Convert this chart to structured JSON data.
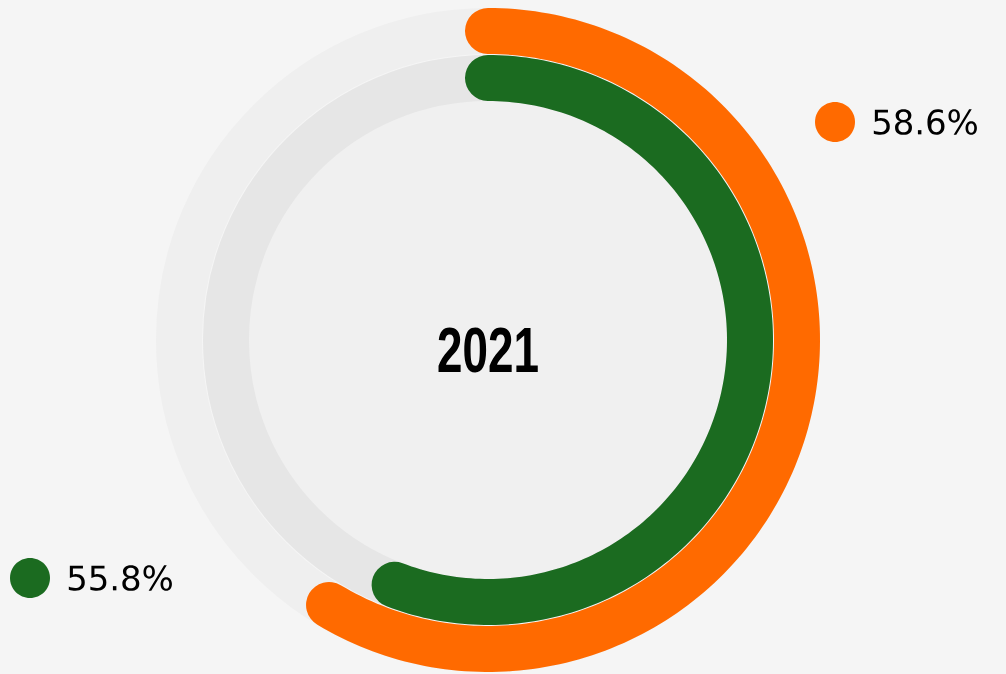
{
  "chart_data": {
    "type": "other",
    "title": "2021",
    "values": [
      58.6,
      55.8
    ],
    "colors": [
      "#ff6a00",
      "#1b6b20"
    ],
    "value_labels": [
      "58.6%",
      "55.8%"
    ]
  }
}
